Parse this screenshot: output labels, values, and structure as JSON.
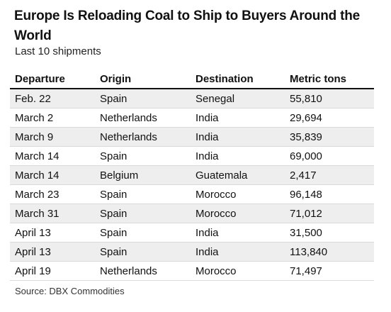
{
  "chart_data": {
    "type": "table",
    "title": "Europe Is Reloading Coal to Ship to Buyers Around the World",
    "subtitle": "Last 10 shipments",
    "columns": [
      "Departure",
      "Origin",
      "Destination",
      "Metric tons"
    ],
    "rows": [
      [
        "Feb. 22",
        "Spain",
        "Senegal",
        "55,810"
      ],
      [
        "March 2",
        "Netherlands",
        "India",
        "29,694"
      ],
      [
        "March 9",
        "Netherlands",
        "India",
        "35,839"
      ],
      [
        "March 14",
        "Spain",
        "India",
        "69,000"
      ],
      [
        "March 14",
        "Belgium",
        "Guatemala",
        "2,417"
      ],
      [
        "March 23",
        "Spain",
        "Morocco",
        "96,148"
      ],
      [
        "March 31",
        "Spain",
        "Morocco",
        "71,012"
      ],
      [
        "April 13",
        "Spain",
        "India",
        "31,500"
      ],
      [
        "April 13",
        "Spain",
        "India",
        "113,840"
      ],
      [
        "April 19",
        "Netherlands",
        "Morocco",
        "71,497"
      ]
    ],
    "source": "Source: DBX Commodities",
    "zebra_color": "#eeeeee"
  }
}
